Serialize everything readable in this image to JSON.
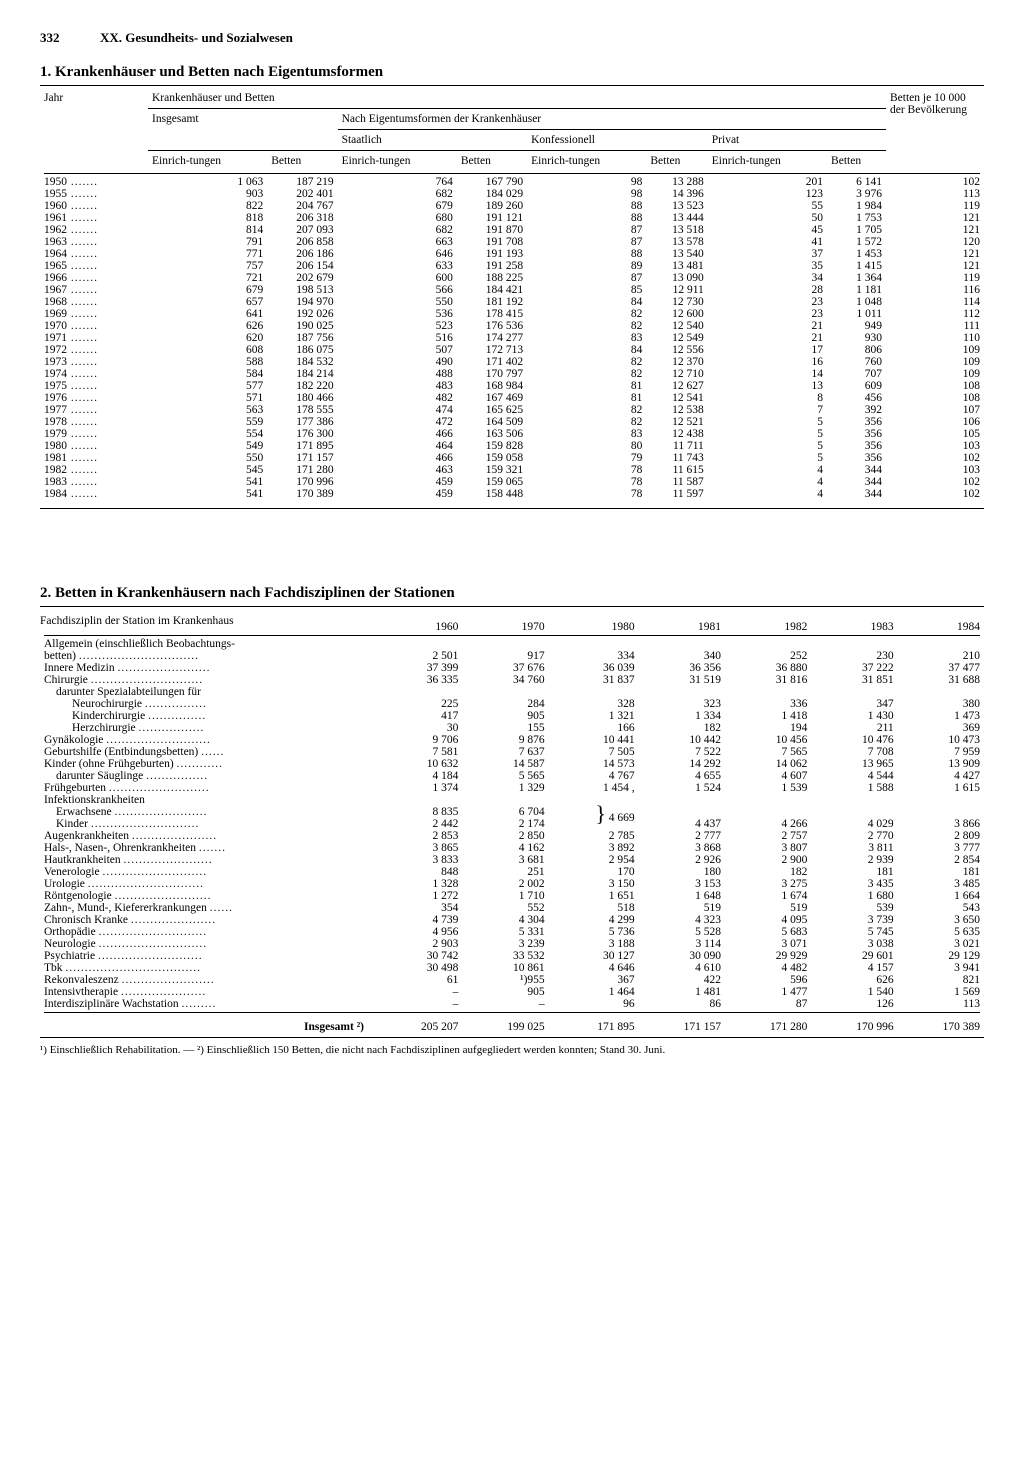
{
  "page": {
    "number": "332",
    "chapter": "XX. Gesundheits- und Sozialwesen"
  },
  "table1": {
    "title": "1. Krankenhäuser und Betten nach Eigentumsformen",
    "header": {
      "jahr": "Jahr",
      "group": "Krankenhäuser und Betten",
      "insgesamt": "Insgesamt",
      "nach": "Nach Eigentumsformen der Krankenhäuser",
      "staatlich": "Staatlich",
      "konfessionell": "Konfessionell",
      "privat": "Privat",
      "betten_pop": "Betten je 10 000 der Bevölkerung",
      "einr": "Einrich-tungen",
      "betten": "Betten"
    },
    "rows": [
      [
        "1950",
        "1 063",
        "187 219",
        "764",
        "167 790",
        "98",
        "13 288",
        "201",
        "6 141",
        "102"
      ],
      [
        "1955",
        "903",
        "202 401",
        "682",
        "184 029",
        "98",
        "14 396",
        "123",
        "3 976",
        "113"
      ],
      [
        "1960",
        "822",
        "204 767",
        "679",
        "189 260",
        "88",
        "13 523",
        "55",
        "1 984",
        "119"
      ],
      [
        "1961",
        "818",
        "206 318",
        "680",
        "191 121",
        "88",
        "13 444",
        "50",
        "1 753",
        "121"
      ],
      [
        "1962",
        "814",
        "207 093",
        "682",
        "191 870",
        "87",
        "13 518",
        "45",
        "1 705",
        "121"
      ],
      [
        "1963",
        "791",
        "206 858",
        "663",
        "191 708",
        "87",
        "13 578",
        "41",
        "1 572",
        "120"
      ],
      [
        "1964",
        "771",
        "206 186",
        "646",
        "191 193",
        "88",
        "13 540",
        "37",
        "1 453",
        "121"
      ],
      [
        "1965",
        "757",
        "206 154",
        "633",
        "191 258",
        "89",
        "13 481",
        "35",
        "1 415",
        "121"
      ],
      [
        "1966",
        "721",
        "202 679",
        "600",
        "188 225",
        "87",
        "13 090",
        "34",
        "1 364",
        "119"
      ],
      [
        "1967",
        "679",
        "198 513",
        "566",
        "184 421",
        "85",
        "12 911",
        "28",
        "1 181",
        "116"
      ],
      [
        "1968",
        "657",
        "194 970",
        "550",
        "181 192",
        "84",
        "12 730",
        "23",
        "1 048",
        "114"
      ],
      [
        "1969",
        "641",
        "192 026",
        "536",
        "178 415",
        "82",
        "12 600",
        "23",
        "1 011",
        "112"
      ],
      [
        "1970",
        "626",
        "190 025",
        "523",
        "176 536",
        "82",
        "12 540",
        "21",
        "949",
        "111"
      ],
      [
        "1971",
        "620",
        "187 756",
        "516",
        "174 277",
        "83",
        "12 549",
        "21",
        "930",
        "110"
      ],
      [
        "1972",
        "608",
        "186 075",
        "507",
        "172 713",
        "84",
        "12 556",
        "17",
        "806",
        "109"
      ],
      [
        "1973",
        "588",
        "184 532",
        "490",
        "171 402",
        "82",
        "12 370",
        "16",
        "760",
        "109"
      ],
      [
        "1974",
        "584",
        "184 214",
        "488",
        "170 797",
        "82",
        "12 710",
        "14",
        "707",
        "109"
      ],
      [
        "1975",
        "577",
        "182 220",
        "483",
        "168 984",
        "81",
        "12 627",
        "13",
        "609",
        "108"
      ],
      [
        "1976",
        "571",
        "180 466",
        "482",
        "167 469",
        "81",
        "12 541",
        "8",
        "456",
        "108"
      ],
      [
        "1977",
        "563",
        "178 555",
        "474",
        "165 625",
        "82",
        "12 538",
        "7",
        "392",
        "107"
      ],
      [
        "1978",
        "559",
        "177 386",
        "472",
        "164 509",
        "82",
        "12 521",
        "5",
        "356",
        "106"
      ],
      [
        "1979",
        "554",
        "176 300",
        "466",
        "163 506",
        "83",
        "12 438",
        "5",
        "356",
        "105"
      ],
      [
        "1980",
        "549",
        "171 895",
        "464",
        "159 828",
        "80",
        "11 711",
        "5",
        "356",
        "103"
      ],
      [
        "1981",
        "550",
        "171 157",
        "466",
        "159 058",
        "79",
        "11 743",
        "5",
        "356",
        "102"
      ],
      [
        "1982",
        "545",
        "171 280",
        "463",
        "159 321",
        "78",
        "11 615",
        "4",
        "344",
        "103"
      ],
      [
        "1983",
        "541",
        "170 996",
        "459",
        "159 065",
        "78",
        "11 587",
        "4",
        "344",
        "102"
      ],
      [
        "1984",
        "541",
        "170 389",
        "459",
        "158 448",
        "78",
        "11 597",
        "4",
        "344",
        "102"
      ]
    ]
  },
  "table2": {
    "title": "2. Betten in Krankenhäusern nach Fachdisziplinen der Stationen",
    "header": {
      "label": "Fachdisziplin der Station im Krankenhaus",
      "years": [
        "1960",
        "1970",
        "1980",
        "1981",
        "1982",
        "1983",
        "1984"
      ]
    },
    "rows": [
      {
        "l": "Allgemein (einschließlich Beobachtungs-",
        "v": [
          "",
          "",
          "",
          "",
          "",
          "",
          ""
        ]
      },
      {
        "l": "betten)",
        "cont": true,
        "v": [
          "2 501",
          "917",
          "334",
          "340",
          "252",
          "230",
          "210"
        ]
      },
      {
        "l": "Innere Medizin",
        "v": [
          "37 399",
          "37 676",
          "36 039",
          "36 356",
          "36 880",
          "37 222",
          "37 477"
        ]
      },
      {
        "l": "Chirurgie",
        "v": [
          "36 335",
          "34 760",
          "31 837",
          "31 519",
          "31 816",
          "31 851",
          "31 688"
        ]
      },
      {
        "l": "darunter Spezialabteilungen für",
        "i": 1,
        "v": [
          "",
          "",
          "",
          "",
          "",
          "",
          ""
        ]
      },
      {
        "l": "Neurochirurgie",
        "i": 2,
        "v": [
          "225",
          "284",
          "328",
          "323",
          "336",
          "347",
          "380"
        ]
      },
      {
        "l": "Kinderchirurgie",
        "i": 2,
        "v": [
          "417",
          "905",
          "1 321",
          "1 334",
          "1 418",
          "1 430",
          "1 473"
        ]
      },
      {
        "l": "Herzchirurgie",
        "i": 2,
        "v": [
          "30",
          "155",
          "166",
          "182",
          "194",
          "211",
          "369"
        ]
      },
      {
        "l": "Gynäkologie",
        "v": [
          "9 706",
          "9 876",
          "10 441",
          "10 442",
          "10 456",
          "10 476",
          "10 473"
        ]
      },
      {
        "l": "Geburtshilfe (Entbindungsbetten)",
        "v": [
          "7 581",
          "7 637",
          "7 505",
          "7 522",
          "7 565",
          "7 708",
          "7 959"
        ]
      },
      {
        "l": "Kinder (ohne Frühgeburten)",
        "v": [
          "10 632",
          "14 587",
          "14 573",
          "14 292",
          "14 062",
          "13 965",
          "13 909"
        ]
      },
      {
        "l": "darunter Säuglinge",
        "i": 1,
        "v": [
          "4 184",
          "5 565",
          "4 767",
          "4 655",
          "4 607",
          "4 544",
          "4 427"
        ]
      },
      {
        "l": "Frühgeburten",
        "v": [
          "1 374",
          "1 329",
          "1 454  ,",
          "1 524",
          "1 539",
          "1 588",
          "1 615"
        ]
      },
      {
        "l": "Infektionskrankheiten",
        "v": [
          "",
          "",
          "",
          "",
          "",
          "",
          ""
        ]
      },
      {
        "l": "Erwachsene",
        "i": 1,
        "brace": "top",
        "v": [
          "8 835",
          "6 704",
          "",
          "",
          "",
          "",
          ""
        ]
      },
      {
        "l": "Kinder",
        "i": 1,
        "brace": "bot",
        "v": [
          "2 442",
          "2 174",
          "4 669",
          "4 437",
          "4 266",
          "4 029",
          "3 866"
        ]
      },
      {
        "l": "Augenkrankheiten",
        "v": [
          "2 853",
          "2 850",
          "2 785",
          "2 777",
          "2 757",
          "2 770",
          "2 809"
        ]
      },
      {
        "l": "Hals-, Nasen-, Ohrenkrankheiten",
        "v": [
          "3 865",
          "4 162",
          "3 892",
          "3 868",
          "3 807",
          "3 811",
          "3 777"
        ]
      },
      {
        "l": "Hautkrankheiten",
        "v": [
          "3 833",
          "3 681",
          "2 954",
          "2 926",
          "2 900",
          "2 939",
          "2 854"
        ]
      },
      {
        "l": "Venerologie",
        "v": [
          "848",
          "251",
          "170",
          "180",
          "182",
          "181",
          "181"
        ]
      },
      {
        "l": "Urologie",
        "v": [
          "1 328",
          "2 002",
          "3 150",
          "3 153",
          "3 275",
          "3 435",
          "3 485"
        ]
      },
      {
        "l": "Röntgenologie",
        "v": [
          "1 272",
          "1 710",
          "1 651",
          "1 648",
          "1 674",
          "1 680",
          "1 664"
        ]
      },
      {
        "l": "Zahn-, Mund-, Kiefererkrankungen",
        "v": [
          "354",
          "552",
          "518",
          "519",
          "519",
          "539",
          "543"
        ]
      },
      {
        "l": "Chronisch Kranke",
        "v": [
          "4 739",
          "4 304",
          "4 299",
          "4 323",
          "4 095",
          "3 739",
          "3 650"
        ]
      },
      {
        "l": "Orthopädie",
        "v": [
          "4 956",
          "5 331",
          "5 736",
          "5 528",
          "5 683",
          "5 745",
          "5 635"
        ]
      },
      {
        "l": "Neurologie",
        "v": [
          "2 903",
          "3 239",
          "3 188",
          "3 114",
          "3 071",
          "3 038",
          "3 021"
        ],
        "note": ""
      },
      {
        "l": "Psychiatrie",
        "v": [
          "30 742",
          "33 532",
          "30 127",
          "30 090",
          "29 929",
          "29 601",
          "29 129"
        ]
      },
      {
        "l": "Tbk",
        "v": [
          "30 498",
          "10 861",
          "4 646",
          "4 610",
          "4 482",
          "4 157",
          "3 941"
        ]
      },
      {
        "l": "Rekonvaleszenz",
        "v": [
          "61",
          "¹)955",
          "367",
          "422",
          "596",
          "626",
          "821"
        ]
      },
      {
        "l": "Intensivtherapie",
        "v": [
          "–",
          "905",
          "1 464",
          "1 481",
          "1 477",
          "1 540",
          "1 569"
        ]
      },
      {
        "l": "Interdisziplinäre Wachstation",
        "v": [
          "–",
          "–",
          "96",
          "86",
          "87",
          "126",
          "113"
        ]
      }
    ],
    "total": {
      "label": "Insgesamt  ²)",
      "v": [
        "205 207",
        "199 025",
        "171 895",
        "171 157",
        "171 280",
        "170 996",
        "170 389"
      ]
    },
    "footnotes": "¹) Einschließlich Rehabilitation. — ²) Einschließlich 150 Betten, die nicht nach Fachdisziplinen aufgegliedert werden konnten; Stand 30. Juni."
  }
}
